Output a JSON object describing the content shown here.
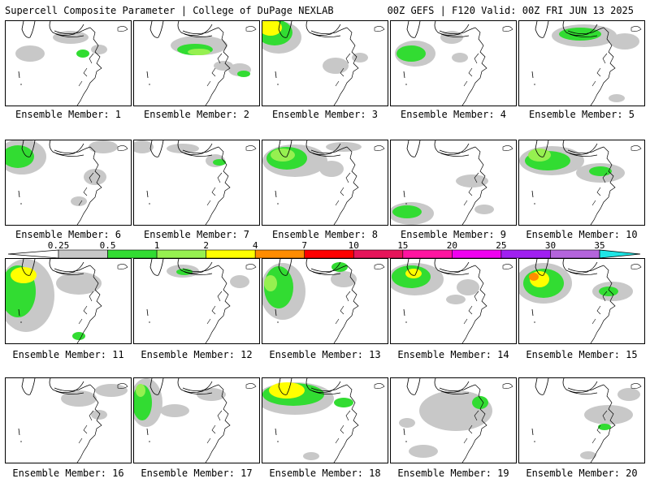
{
  "header": {
    "left": "Supercell Composite Parameter | College of DuPage NEXLAB",
    "right": "00Z GEFS | F120 Valid: 00Z FRI JUN 13 2025"
  },
  "member_label_prefix": "Ensemble Member:",
  "members": [
    "1",
    "2",
    "3",
    "4",
    "5",
    "6",
    "7",
    "8",
    "9",
    "10",
    "11",
    "12",
    "13",
    "14",
    "15",
    "16",
    "17",
    "18",
    "19",
    "20"
  ],
  "colorbar": {
    "labels": [
      "0.25",
      "0.5",
      "1",
      "2",
      "4",
      "7",
      "10",
      "15",
      "20",
      "25",
      "30",
      "35"
    ],
    "colors": {
      "below": "#ffffff",
      "bins": [
        "#c8c8c8",
        "#32dc32",
        "#96f050",
        "#ffff00",
        "#ff8c00",
        "#ff0000",
        "#e6145a",
        "#ff14a0",
        "#f000f0",
        "#a020f0",
        "#b464dc",
        "#1ee6e6"
      ]
    }
  }
}
